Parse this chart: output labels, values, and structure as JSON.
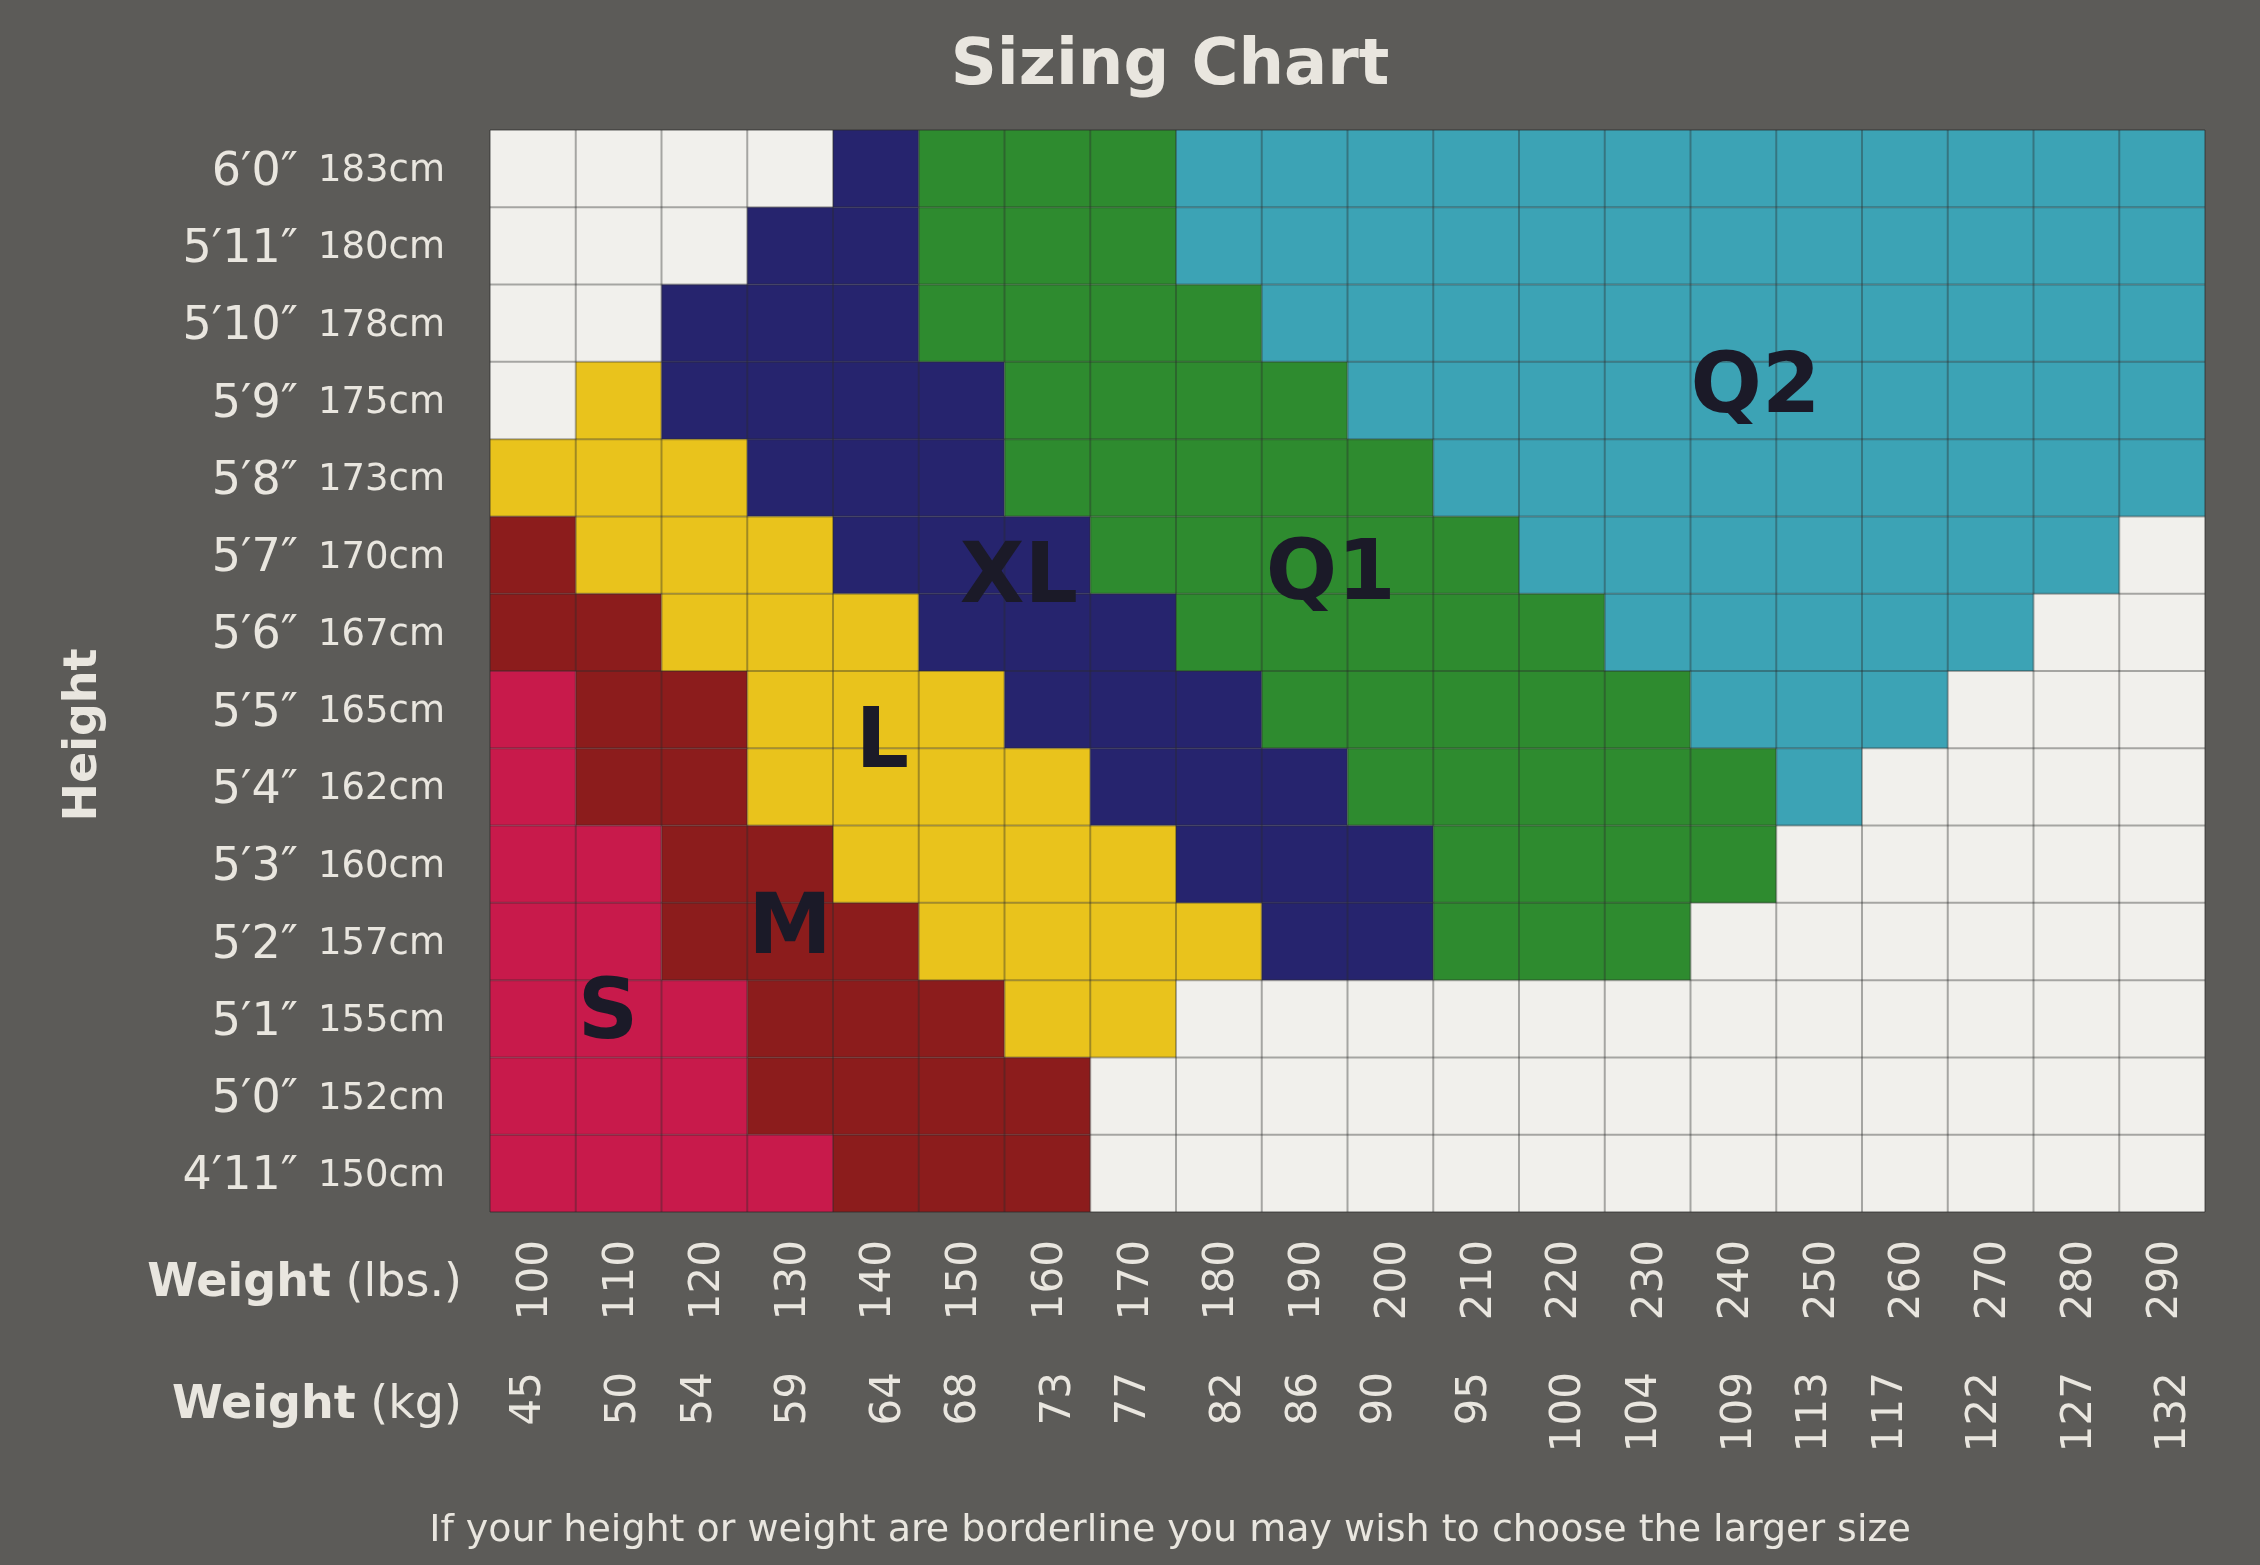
{
  "chart_data": {
    "type": "bar",
    "orientation": "horizontal",
    "title": "Sizing Chart",
    "xlabel": "Weight (lbs.)",
    "x2label": "Weight (kg)",
    "ylabel": "Height",
    "categories": [
      "6′0″",
      "5′11″",
      "5′10″",
      "5′9″",
      "5′8″",
      "5′7″",
      "5′6″",
      "5′5″",
      "5′4″",
      "5′3″",
      "5′2″",
      "5′1″",
      "5′0″",
      "4′11″"
    ],
    "y2_categories": [
      "183cm",
      "180cm",
      "178cm",
      "175cm",
      "173cm",
      "170cm",
      "167cm",
      "165cm",
      "162cm",
      "160cm",
      "157cm",
      "155cm",
      "152cm",
      "150cm"
    ],
    "series": [
      {
        "name": "S",
        "color": "#c81a4b",
        "base": [
          null,
          null,
          null,
          null,
          null,
          null,
          null,
          95,
          95,
          95,
          95,
          95,
          95,
          95
        ],
        "values": [
          null,
          null,
          null,
          null,
          null,
          null,
          null,
          10,
          10,
          20,
          20,
          30,
          30,
          40
        ]
      },
      {
        "name": "M",
        "color": "#8c1c1c",
        "base": [
          null,
          null,
          null,
          null,
          null,
          95,
          95,
          105,
          105,
          115,
          115,
          125,
          125,
          135
        ],
        "values": [
          null,
          null,
          null,
          null,
          null,
          10,
          20,
          20,
          20,
          20,
          30,
          30,
          40,
          30
        ]
      },
      {
        "name": "L",
        "color": "#e9c31c",
        "base": [
          null,
          null,
          null,
          105,
          95,
          105,
          115,
          125,
          125,
          135,
          145,
          155,
          null,
          null
        ],
        "values": [
          null,
          null,
          null,
          10,
          30,
          30,
          30,
          30,
          40,
          40,
          40,
          20,
          null,
          null
        ]
      },
      {
        "name": "XL",
        "color": "#26246e",
        "base": [
          135,
          125,
          115,
          115,
          125,
          135,
          145,
          155,
          165,
          175,
          185,
          null,
          null,
          null
        ],
        "values": [
          10,
          20,
          30,
          40,
          30,
          30,
          30,
          30,
          30,
          30,
          20,
          null,
          null,
          null
        ]
      },
      {
        "name": "Q1",
        "color": "#2e8b2f",
        "base": [
          145,
          145,
          145,
          155,
          155,
          165,
          175,
          185,
          195,
          205,
          205,
          null,
          null,
          null
        ],
        "values": [
          30,
          30,
          40,
          40,
          50,
          50,
          50,
          50,
          50,
          40,
          30,
          null,
          null,
          null
        ]
      },
      {
        "name": "Q2",
        "color": "#3ca3b5",
        "base": [
          175,
          175,
          185,
          195,
          205,
          215,
          225,
          235,
          245,
          null,
          null,
          null,
          null,
          null
        ],
        "values": [
          120,
          120,
          110,
          100,
          90,
          70,
          50,
          30,
          10,
          null,
          null,
          null,
          null,
          null
        ]
      }
    ],
    "xlim": [
      95,
      295
    ],
    "xticks": [
      {
        "value": 95,
        "label": null
      },
      100,
      {
        "value": 105,
        "label": null
      },
      110,
      {
        "value": 115,
        "label": null
      },
      120,
      {
        "value": 125,
        "label": null
      },
      130,
      {
        "value": 135,
        "label": null
      },
      140,
      {
        "value": 145,
        "label": null
      },
      150,
      {
        "value": 155,
        "label": null
      },
      160,
      {
        "value": 165,
        "label": null
      },
      170,
      {
        "value": 175,
        "label": null
      },
      180,
      {
        "value": 185,
        "label": null
      },
      190,
      {
        "value": 195,
        "label": null
      },
      200,
      {
        "value": 205,
        "label": null
      },
      210,
      {
        "value": 215,
        "label": null
      },
      220,
      {
        "value": 225,
        "label": null
      },
      230,
      {
        "value": 235,
        "label": null
      },
      240,
      {
        "value": 245,
        "label": null
      },
      250,
      {
        "value": 255,
        "label": null
      },
      260,
      {
        "value": 265,
        "label": null
      },
      270,
      {
        "value": 275,
        "label": null
      },
      280,
      {
        "value": 285,
        "label": null
      },
      290,
      {
        "value": 295,
        "label": null
      }
    ],
    "x2lim": [
      43.1,
      133.8
    ],
    "x2ticks": [
      45,
      50,
      54,
      59,
      64,
      68,
      73,
      77,
      82,
      86,
      90,
      95,
      100,
      104,
      109,
      113,
      117,
      122,
      127,
      132
    ],
    "grid": true,
    "annotations": [
      "If your height or weight are borderline you may wish to choose the larger size"
    ]
  }
}
